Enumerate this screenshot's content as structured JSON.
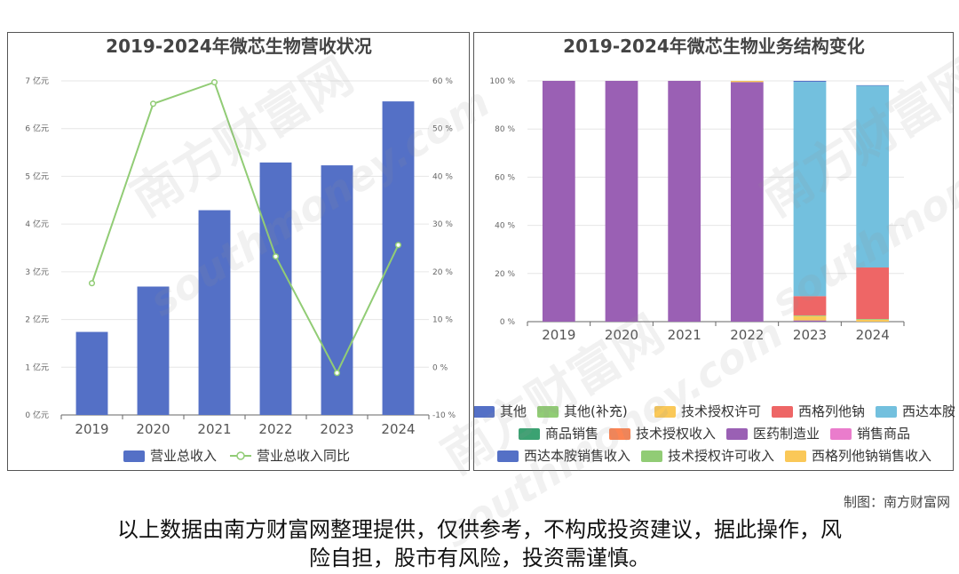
{
  "chart_data": [
    {
      "type": "bar",
      "title": "2019-2024年微芯生物营收状况",
      "categories": [
        "2019",
        "2020",
        "2021",
        "2022",
        "2023",
        "2024"
      ],
      "series": [
        {
          "name": "营业总收入",
          "kind": "bar",
          "axis": "left",
          "values": [
            1.74,
            2.69,
            4.29,
            5.29,
            5.23,
            6.57
          ],
          "color": "#5470c6"
        },
        {
          "name": "营业总收入同比",
          "kind": "line",
          "axis": "right",
          "values": [
            17.6,
            55.2,
            59.7,
            23.2,
            -1.2,
            25.6
          ],
          "color": "#91cc75"
        }
      ],
      "y_left": {
        "min": 0,
        "max": 7,
        "step": 1,
        "unit": "亿元",
        "ticks": [
          "0 亿元",
          "1 亿元",
          "2 亿元",
          "3 亿元",
          "4 亿元",
          "5 亿元",
          "6 亿元",
          "7 亿元"
        ]
      },
      "y_right": {
        "min": -10,
        "max": 60,
        "step": 10,
        "unit": "%",
        "ticks": [
          "-10 %",
          "0 %",
          "10 %",
          "20 %",
          "30 %",
          "40 %",
          "50 %",
          "60 %"
        ]
      },
      "legend": [
        "营业总收入",
        "营业总收入同比"
      ],
      "legend_position": "bottom",
      "grid": true
    },
    {
      "type": "bar",
      "stacked": true,
      "title": "2019-2024年微芯生物业务结构变化",
      "categories": [
        "2019",
        "2020",
        "2021",
        "2022",
        "2023",
        "2024"
      ],
      "series": [
        {
          "name": "医药制造业",
          "color": "#9a60b4",
          "values": [
            100,
            100,
            100,
            99.5,
            0.5,
            0
          ]
        },
        {
          "name": "技术授权许可",
          "color": "#fac858",
          "values": [
            0,
            0,
            0,
            0.5,
            1.8,
            0.8
          ]
        },
        {
          "name": "其他(补充)",
          "color": "#91cc75",
          "values": [
            0,
            0,
            0,
            0,
            0.3,
            0.3
          ]
        },
        {
          "name": "西格列他钠",
          "color": "#ee6666",
          "values": [
            0,
            0,
            0,
            0,
            8.0,
            21.4
          ]
        },
        {
          "name": "西达本胺",
          "color": "#73c0de",
          "values": [
            0,
            0,
            0,
            0,
            89.0,
            75.5
          ]
        },
        {
          "name": "其他",
          "color": "#5470c6",
          "values": [
            0,
            0,
            0,
            0,
            0.4,
            0.2
          ]
        }
      ],
      "y": {
        "min": 0,
        "max": 100,
        "step": 20,
        "ticks": [
          "0 %",
          "20 %",
          "40 %",
          "60 %",
          "80 %",
          "100 %"
        ]
      },
      "legend": [
        {
          "name": "其他",
          "color": "#5470c6"
        },
        {
          "name": "其他(补充)",
          "color": "#91cc75"
        },
        {
          "name": "技术授权许可",
          "color": "#fac858"
        },
        {
          "name": "西格列他钠",
          "color": "#ee6666"
        },
        {
          "name": "西达本胺",
          "color": "#73c0de"
        },
        {
          "name": "商品销售",
          "color": "#3ba272"
        },
        {
          "name": "技术授权收入",
          "color": "#fc8452"
        },
        {
          "name": "医药制造业",
          "color": "#9a60b4"
        },
        {
          "name": "销售商品",
          "color": "#ea7ccc"
        },
        {
          "name": "西达本胺销售收入",
          "color": "#5470c6"
        },
        {
          "name": "技术授权许可收入",
          "color": "#91cc75"
        },
        {
          "name": "西格列他钠销售收入",
          "color": "#fac858"
        }
      ],
      "legend_position": "bottom",
      "grid": true
    }
  ],
  "credit": "制图：南方财富网",
  "disclaimer": [
    "以上数据由南方财富网整理提供，仅供参考，不构成投资建议，据此操作，风",
    "险自担，股市有风险，投资需谨慎。"
  ],
  "watermark": {
    "cn": "南方财富网",
    "en": "southmoney.com"
  }
}
